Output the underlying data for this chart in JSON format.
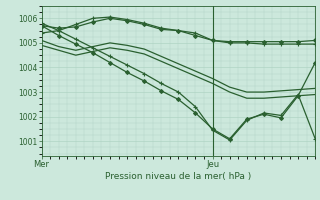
{
  "background_color": "#cce8dc",
  "grid_color": "#b0d4c4",
  "line_color": "#2a6030",
  "title": "Pression niveau de la mer( hPa )",
  "xlabel_mer": "Mer",
  "xlabel_jeu": "Jeu",
  "ylim": [
    1000.4,
    1006.5
  ],
  "xlim": [
    0,
    48
  ],
  "yticks": [
    1001,
    1002,
    1003,
    1004,
    1005,
    1006
  ],
  "jeu_x": 30,
  "series": [
    {
      "x": [
        0,
        3,
        6,
        9,
        12,
        15,
        18,
        21,
        24,
        27,
        30,
        33,
        36,
        39,
        42,
        45,
        48
      ],
      "y": [
        1005.7,
        1005.6,
        1005.65,
        1005.85,
        1006.0,
        1005.9,
        1005.75,
        1005.55,
        1005.5,
        1005.3,
        1005.1,
        1005.05,
        1005.05,
        1005.05,
        1005.05,
        1005.05,
        1005.1
      ],
      "marker": "D",
      "ms": 2.0,
      "lw": 0.9
    },
    {
      "x": [
        0,
        3,
        6,
        9,
        12,
        15,
        18,
        21,
        24,
        27,
        30,
        33,
        36,
        39,
        42,
        45,
        48
      ],
      "y": [
        1005.4,
        1005.5,
        1005.75,
        1006.0,
        1006.05,
        1005.95,
        1005.8,
        1005.6,
        1005.5,
        1005.4,
        1005.1,
        1005.0,
        1005.0,
        1004.95,
        1004.95,
        1004.95,
        1004.95
      ],
      "marker": "+",
      "ms": 3.5,
      "lw": 0.9
    },
    {
      "x": [
        0,
        3,
        6,
        9,
        12,
        15,
        18,
        21,
        24,
        27,
        30,
        33,
        36,
        39,
        42,
        45,
        48
      ],
      "y": [
        1005.1,
        1004.85,
        1004.7,
        1004.85,
        1005.0,
        1004.9,
        1004.75,
        1004.45,
        1004.15,
        1003.85,
        1003.55,
        1003.2,
        1003.0,
        1003.0,
        1003.05,
        1003.1,
        1003.15
      ],
      "marker": "None",
      "ms": 2,
      "lw": 0.9
    },
    {
      "x": [
        0,
        3,
        6,
        9,
        12,
        15,
        18,
        21,
        24,
        27,
        30,
        33,
        36,
        39,
        42,
        45,
        48
      ],
      "y": [
        1004.9,
        1004.7,
        1004.5,
        1004.65,
        1004.8,
        1004.7,
        1004.55,
        1004.25,
        1003.95,
        1003.65,
        1003.35,
        1003.0,
        1002.75,
        1002.75,
        1002.8,
        1002.85,
        1002.9
      ],
      "marker": "None",
      "ms": 2,
      "lw": 0.9
    },
    {
      "x": [
        0,
        3,
        6,
        9,
        12,
        15,
        18,
        21,
        24,
        27,
        30,
        33,
        36,
        39,
        42,
        45,
        48
      ],
      "y": [
        1005.8,
        1005.5,
        1005.15,
        1004.8,
        1004.45,
        1004.1,
        1003.75,
        1003.35,
        1003.0,
        1002.4,
        1001.45,
        1001.05,
        1001.85,
        1002.15,
        1002.05,
        1002.9,
        1001.1
      ],
      "marker": "+",
      "ms": 3.5,
      "lw": 0.9
    },
    {
      "x": [
        0,
        3,
        6,
        9,
        12,
        15,
        18,
        21,
        24,
        27,
        30,
        33,
        36,
        39,
        42,
        45,
        48
      ],
      "y": [
        1005.7,
        1005.3,
        1004.95,
        1004.6,
        1004.2,
        1003.8,
        1003.45,
        1003.05,
        1002.7,
        1002.15,
        1001.5,
        1001.1,
        1001.9,
        1002.1,
        1001.95,
        1002.85,
        1004.2
      ],
      "marker": "D",
      "ms": 2.0,
      "lw": 0.9
    }
  ]
}
